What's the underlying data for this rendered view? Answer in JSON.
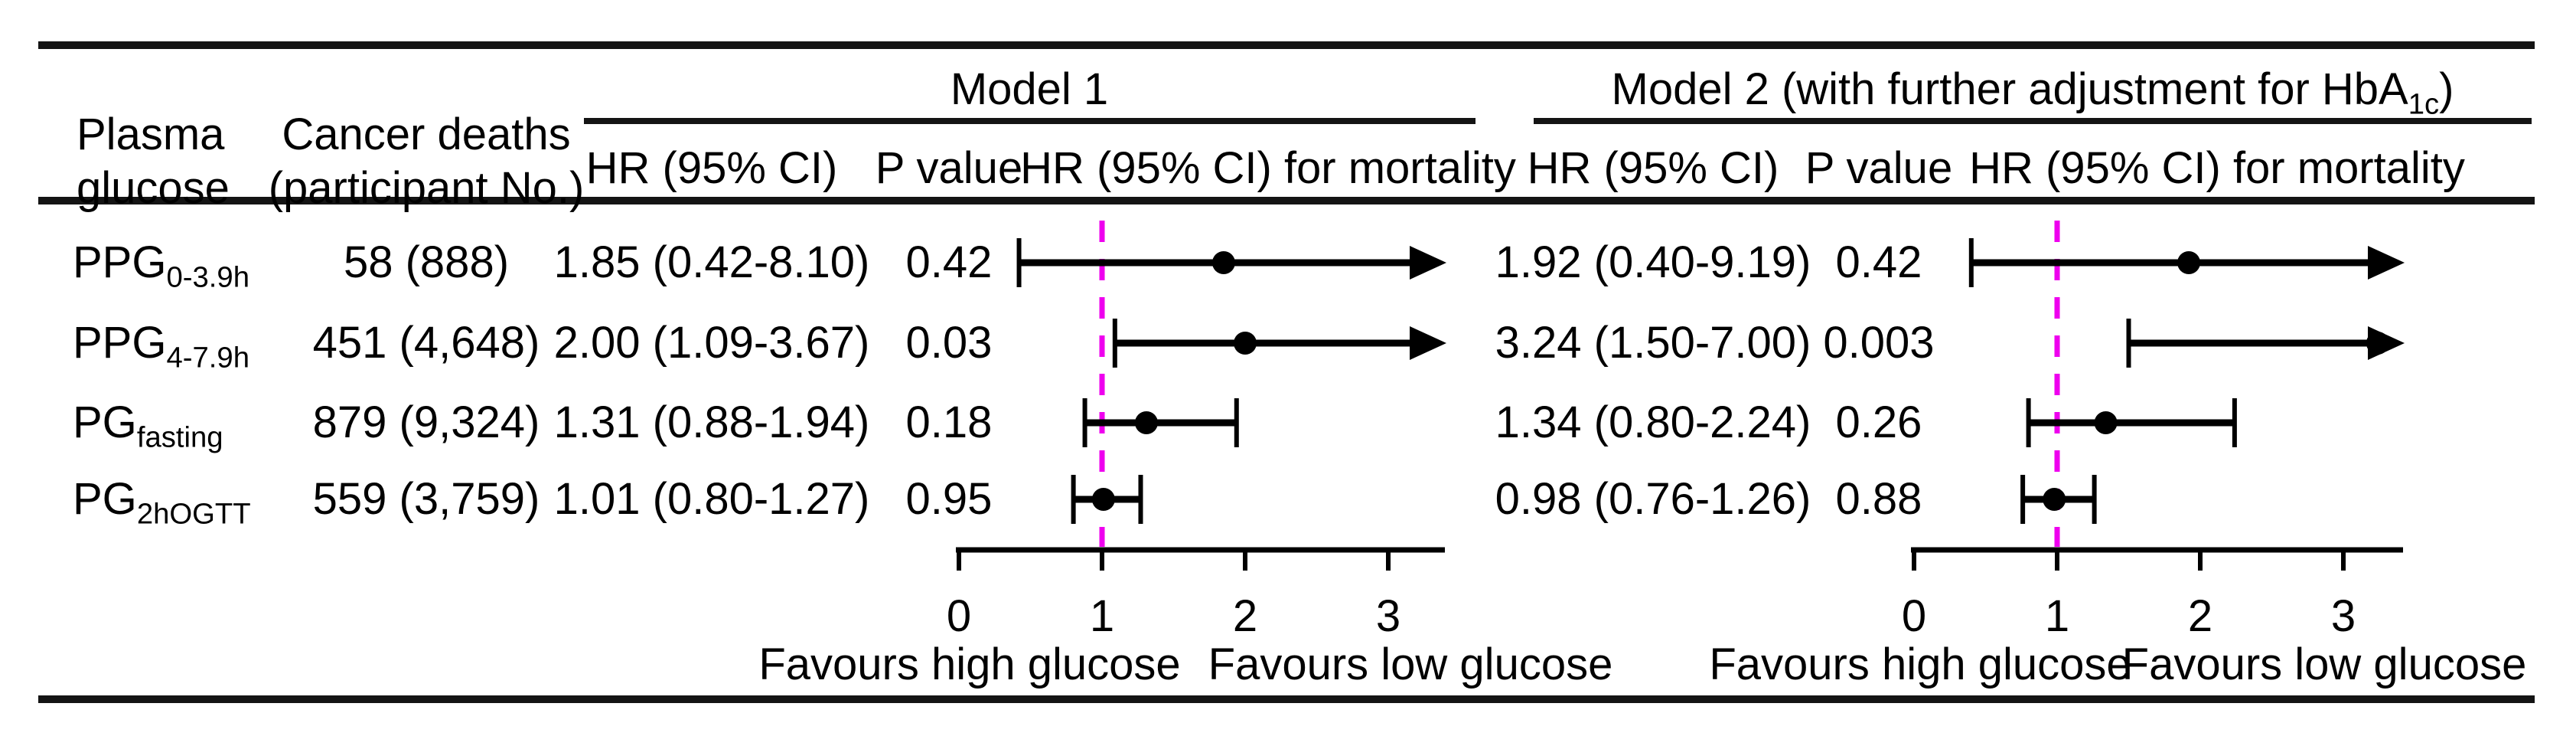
{
  "figure": {
    "col_glucose_header_line1": "Plasma",
    "col_glucose_header_line2": "glucose",
    "col_deaths_header_line1": "Cancer deaths",
    "col_deaths_header_line2": "(participant No.)",
    "model1_title": "Model 1",
    "model2_title_pre": "Model 2 (with further adjustment for HbA",
    "model2_title_sub": "1c",
    "model2_title_post": ")",
    "subheaders": {
      "hr": "HR (95% CI)",
      "p": "P value",
      "hr_mortality": "HR (95% CI) for mortality"
    },
    "rows": [
      {
        "label_main": "PPG",
        "label_sub": "0-3.9h",
        "deaths": "58 (888)",
        "m1_hr": "1.85 (0.42-8.10)",
        "m1_p": "0.42",
        "m2_hr": "1.92 (0.40-9.19)",
        "m2_p": "0.42"
      },
      {
        "label_main": "PPG",
        "label_sub": "4-7.9h",
        "deaths": "451 (4,648)",
        "m1_hr": "2.00 (1.09-3.67)",
        "m1_p": "0.03",
        "m2_hr": "3.24 (1.50-7.00)",
        "m2_p": "0.003"
      },
      {
        "label_main": "PG",
        "label_sub": "fasting",
        "deaths": "879 (9,324)",
        "m1_hr": "1.31 (0.88-1.94)",
        "m1_p": "0.18",
        "m2_hr": "1.34 (0.80-2.24)",
        "m2_p": "0.26"
      },
      {
        "label_main": "PG",
        "label_sub": "2hOGTT",
        "deaths": "559 (3,759)",
        "m1_hr": "1.01 (0.80-1.27)",
        "m1_p": "0.95",
        "m2_hr": "0.98 (0.76-1.26)",
        "m2_p": "0.88"
      }
    ],
    "axis_labels": {
      "favours_left": "Favours high glucose",
      "favours_right": "Favours low glucose"
    }
  },
  "chart_data": {
    "type": "forest",
    "categories": [
      "PPG 0-3.9h",
      "PPG 4-7.9h",
      "PG fasting",
      "PG 2hOGTT"
    ],
    "x_ticks": [
      0,
      1,
      2,
      3
    ],
    "x_max": 3.4,
    "ref_line": 1,
    "ref_line_color": "#EE00EE",
    "xlabel_left": "Favours high glucose",
    "xlabel_right": "Favours low glucose",
    "panels": [
      {
        "name": "Model 1",
        "hr": [
          1.85,
          2.0,
          1.31,
          1.01
        ],
        "ci_low": [
          0.42,
          1.09,
          0.88,
          0.8
        ],
        "ci_high": [
          8.1,
          3.67,
          1.94,
          1.27
        ],
        "p_values": [
          "0.42",
          "0.03",
          "0.18",
          "0.95"
        ],
        "clipped_high": [
          true,
          true,
          false,
          false
        ]
      },
      {
        "name": "Model 2 (with further adjustment for HbA1c)",
        "hr": [
          1.92,
          3.24,
          1.34,
          0.98
        ],
        "ci_low": [
          0.4,
          1.5,
          0.8,
          0.76
        ],
        "ci_high": [
          9.19,
          7.0,
          2.24,
          1.26
        ],
        "p_values": [
          "0.42",
          "0.003",
          "0.26",
          "0.88"
        ],
        "clipped_high": [
          true,
          true,
          false,
          false
        ]
      }
    ]
  },
  "colors": {
    "text": "#000000",
    "rule": "#141414",
    "ref_line": "#EE00EE"
  }
}
